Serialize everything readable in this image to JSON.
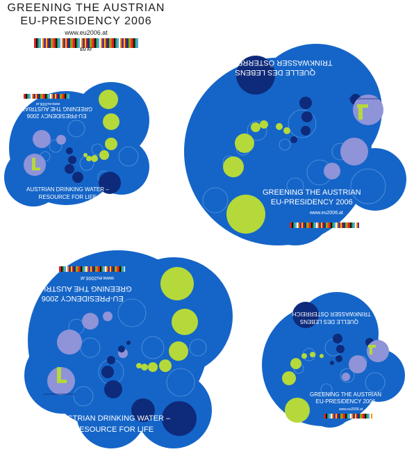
{
  "header": {
    "line1": "GREENING THE AUSTRIAN",
    "line2": "EU-PRESIDENCY 2006",
    "url": "www.eu2006.at",
    "flag_label": "EU AT"
  },
  "coasters": {
    "greening_line1": "GREENING THE AUSTRIAN",
    "greening_line2": "EU-PRESIDENCY 2006",
    "url": "www.eu2006.at",
    "english_line1": "AUSTRIAN DRINKING WATER –",
    "english_line2": "RESOURCE FOR LIFE",
    "german_line1": "TRINKWASSER ÖSTERREICH –",
    "german_line2": "QUELLE DES LEBENS",
    "badge_url": "www.lebensministerium.at",
    "badge_letter": "L"
  },
  "colors": {
    "coaster_blue": "#1565c8",
    "navy_dot": "#0e2a7a",
    "lime_dot": "#b5d93a",
    "lavender_dot": "#8f93d8",
    "outline": "#5a98e0"
  }
}
